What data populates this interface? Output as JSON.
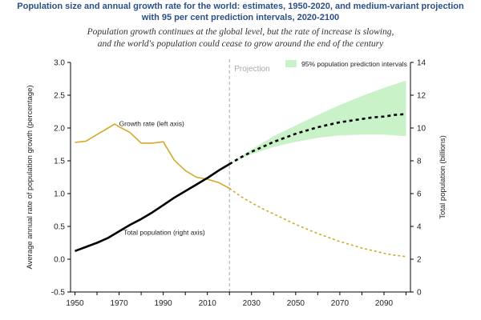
{
  "chart_data": {
    "type": "line",
    "title_line1": "Population size and annual growth rate for the world: estimates, 1950-2020, and medium-variant projection",
    "title_line2": "with 95 per cent prediction intervals, 2020-2100",
    "subtitle_line1": "Population growth continues at the global level, but the rate of increase is slowing,",
    "subtitle_line2": "and the world's population could cease to grow around the end of the century",
    "projection_label": "Projection",
    "projection_start_year": 2020,
    "legend_label": "95% population prediction intervals",
    "ylabel_left": "Average annual rate of population growth (percentage)",
    "ylabel_right": "Total population (billions)",
    "xlim": [
      1948,
      2102
    ],
    "ylim_left": [
      -0.5,
      3.0
    ],
    "ylim_right": [
      0,
      14
    ],
    "x_ticks": [
      "1950",
      "1970",
      "1990",
      "2010",
      "2030",
      "2050",
      "2070",
      "2090"
    ],
    "x_tick_values": [
      1950,
      1960,
      1970,
      1980,
      1990,
      2000,
      2010,
      2020,
      2030,
      2040,
      2050,
      2060,
      2070,
      2080,
      2090,
      2100
    ],
    "y_left_ticks": [
      "-0.5",
      "0.0",
      "0.5",
      "1.0",
      "1.5",
      "2.0",
      "2.5",
      "3.0"
    ],
    "y_right_ticks": [
      "0",
      "2",
      "4",
      "6",
      "8",
      "10",
      "12",
      "14"
    ],
    "series": [
      {
        "name": "Growth rate (left axis)",
        "axis": "left",
        "color": "#d4a92a",
        "estimate_x": [
          1950,
          1955,
          1960,
          1965,
          1968,
          1970,
          1975,
          1980,
          1985,
          1990,
          1995,
          2000,
          2005,
          2010,
          2015,
          2020
        ],
        "estimate_y": [
          1.78,
          1.8,
          1.9,
          2.0,
          2.06,
          2.02,
          1.93,
          1.77,
          1.77,
          1.79,
          1.51,
          1.35,
          1.25,
          1.22,
          1.17,
          1.08
        ],
        "projection_x": [
          2020,
          2025,
          2030,
          2035,
          2040,
          2045,
          2050,
          2055,
          2060,
          2065,
          2070,
          2075,
          2080,
          2085,
          2090,
          2095,
          2100
        ],
        "projection_y": [
          1.08,
          0.96,
          0.86,
          0.77,
          0.69,
          0.61,
          0.53,
          0.46,
          0.39,
          0.33,
          0.27,
          0.22,
          0.17,
          0.13,
          0.09,
          0.06,
          0.04
        ]
      },
      {
        "name": "Total population (right axis)",
        "axis": "right",
        "color": "#000000",
        "estimate_x": [
          1950,
          1955,
          1960,
          1965,
          1970,
          1975,
          1980,
          1985,
          1990,
          1995,
          2000,
          2005,
          2010,
          2015,
          2020
        ],
        "estimate_y": [
          2.5,
          2.75,
          3.0,
          3.3,
          3.7,
          4.1,
          4.45,
          4.85,
          5.3,
          5.75,
          6.15,
          6.55,
          6.95,
          7.4,
          7.8
        ],
        "projection_x": [
          2020,
          2025,
          2030,
          2035,
          2040,
          2045,
          2050,
          2055,
          2060,
          2065,
          2070,
          2075,
          2080,
          2085,
          2090,
          2095,
          2100
        ],
        "projection_y": [
          7.8,
          8.2,
          8.55,
          8.85,
          9.15,
          9.4,
          9.65,
          9.85,
          10.05,
          10.2,
          10.35,
          10.45,
          10.55,
          10.65,
          10.7,
          10.8,
          10.85
        ]
      }
    ],
    "prediction_interval": {
      "x": [
        2020,
        2030,
        2040,
        2050,
        2060,
        2070,
        2080,
        2090,
        2100
      ],
      "lower": [
        7.8,
        8.4,
        8.85,
        9.15,
        9.4,
        9.55,
        9.6,
        9.6,
        9.5
      ],
      "upper": [
        7.8,
        8.7,
        9.5,
        10.15,
        10.8,
        11.4,
        11.95,
        12.45,
        12.9
      ]
    },
    "annotations": {
      "growth_label": "Growth rate (left axis)",
      "population_label": "Total population (right axis)"
    },
    "colors": {
      "title": "#2a4f8a",
      "band": "#c9f2c9",
      "growth": "#d4a92a",
      "population": "#000000",
      "projection_line": "#aaaaaa"
    }
  }
}
